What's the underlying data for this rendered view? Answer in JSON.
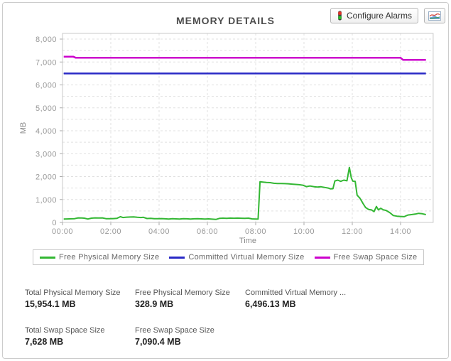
{
  "header": {
    "title": "MEMORY DETAILS",
    "configure_alarms_label": "Configure Alarms"
  },
  "icons": {
    "alarms_button": "traffic-light-icon",
    "chart_button": "line-chart-icon"
  },
  "chart_data": {
    "type": "line",
    "title": "MEMORY DETAILS",
    "xlabel": "Time",
    "ylabel": "MB",
    "ylim": [
      0,
      8000
    ],
    "grid": true,
    "legend_position": "bottom",
    "y_ticks": [
      0,
      1000,
      2000,
      3000,
      4000,
      5000,
      6000,
      7000,
      8000
    ],
    "y_tick_labels": [
      "0",
      "1,000",
      "2,000",
      "3,000",
      "4,000",
      "5,000",
      "6,000",
      "7,000",
      "8,000"
    ],
    "x_tick_hours": [
      0,
      2,
      4,
      6,
      8,
      10,
      12,
      14
    ],
    "x_tick_labels": [
      "00:00",
      "02:00",
      "04:00",
      "06:00",
      "08:00",
      "10:00",
      "12:00",
      "14:00"
    ],
    "x_hours_span": 15.35,
    "series": [
      {
        "name": "Free Physical Memory Size",
        "color": "#33b733",
        "width": 2,
        "points": [
          [
            0.05,
            150
          ],
          [
            0.2,
            152
          ],
          [
            0.35,
            158
          ],
          [
            0.5,
            165
          ],
          [
            0.65,
            200
          ],
          [
            0.8,
            195
          ],
          [
            0.9,
            185
          ],
          [
            1.05,
            150
          ],
          [
            1.2,
            185
          ],
          [
            1.35,
            200
          ],
          [
            1.5,
            195
          ],
          [
            1.65,
            200
          ],
          [
            1.8,
            165
          ],
          [
            1.95,
            162
          ],
          [
            2.1,
            168
          ],
          [
            2.25,
            178
          ],
          [
            2.4,
            250
          ],
          [
            2.5,
            215
          ],
          [
            2.65,
            228
          ],
          [
            2.8,
            235
          ],
          [
            2.95,
            238
          ],
          [
            3.1,
            222
          ],
          [
            3.25,
            214
          ],
          [
            3.35,
            224
          ],
          [
            3.5,
            170
          ],
          [
            3.65,
            180
          ],
          [
            3.8,
            165
          ],
          [
            3.95,
            162
          ],
          [
            4.1,
            166
          ],
          [
            4.25,
            158
          ],
          [
            4.4,
            150
          ],
          [
            4.55,
            160
          ],
          [
            4.7,
            154
          ],
          [
            4.85,
            150
          ],
          [
            5.0,
            164
          ],
          [
            5.15,
            158
          ],
          [
            5.3,
            150
          ],
          [
            5.45,
            158
          ],
          [
            5.6,
            164
          ],
          [
            5.75,
            154
          ],
          [
            5.9,
            150
          ],
          [
            6.05,
            156
          ],
          [
            6.2,
            144
          ],
          [
            6.35,
            130
          ],
          [
            6.5,
            178
          ],
          [
            6.65,
            186
          ],
          [
            6.8,
            180
          ],
          [
            6.95,
            190
          ],
          [
            7.1,
            184
          ],
          [
            7.25,
            190
          ],
          [
            7.4,
            184
          ],
          [
            7.55,
            180
          ],
          [
            7.7,
            186
          ],
          [
            7.85,
            155
          ],
          [
            8.0,
            150
          ],
          [
            8.1,
            148
          ],
          [
            8.18,
            1775
          ],
          [
            8.3,
            1760
          ],
          [
            8.45,
            1745
          ],
          [
            8.6,
            1735
          ],
          [
            8.75,
            1710
          ],
          [
            8.9,
            1700
          ],
          [
            9.05,
            1698
          ],
          [
            9.2,
            1692
          ],
          [
            9.35,
            1688
          ],
          [
            9.5,
            1672
          ],
          [
            9.65,
            1658
          ],
          [
            9.8,
            1648
          ],
          [
            9.95,
            1625
          ],
          [
            10.1,
            1562
          ],
          [
            10.25,
            1590
          ],
          [
            10.4,
            1562
          ],
          [
            10.55,
            1545
          ],
          [
            10.7,
            1556
          ],
          [
            10.85,
            1528
          ],
          [
            11.0,
            1500
          ],
          [
            11.1,
            1465
          ],
          [
            11.2,
            1472
          ],
          [
            11.28,
            1810
          ],
          [
            11.4,
            1845
          ],
          [
            11.52,
            1792
          ],
          [
            11.65,
            1845
          ],
          [
            11.78,
            1818
          ],
          [
            11.88,
            2400
          ],
          [
            11.96,
            1950
          ],
          [
            12.02,
            1800
          ],
          [
            12.12,
            1792
          ],
          [
            12.2,
            1190
          ],
          [
            12.32,
            1050
          ],
          [
            12.45,
            820
          ],
          [
            12.55,
            650
          ],
          [
            12.68,
            565
          ],
          [
            12.8,
            545
          ],
          [
            12.9,
            470
          ],
          [
            13.0,
            695
          ],
          [
            13.08,
            550
          ],
          [
            13.18,
            618
          ],
          [
            13.28,
            552
          ],
          [
            13.4,
            525
          ],
          [
            13.55,
            430
          ],
          [
            13.7,
            300
          ],
          [
            13.85,
            272
          ],
          [
            14.0,
            262
          ],
          [
            14.15,
            250
          ],
          [
            14.3,
            322
          ],
          [
            14.45,
            340
          ],
          [
            14.6,
            362
          ],
          [
            14.75,
            398
          ],
          [
            14.9,
            378
          ],
          [
            15.05,
            340
          ]
        ]
      },
      {
        "name": "Committed Virtual Memory Size",
        "color": "#2929c6",
        "width": 2.5,
        "points": [
          [
            0.05,
            6500
          ],
          [
            15.05,
            6500
          ]
        ]
      },
      {
        "name": "Free Swap Space Size",
        "color": "#cc00cc",
        "width": 2.5,
        "points": [
          [
            0.05,
            7230
          ],
          [
            0.45,
            7230
          ],
          [
            0.55,
            7185
          ],
          [
            14.0,
            7185
          ],
          [
            14.1,
            7095
          ],
          [
            15.05,
            7095
          ]
        ]
      }
    ]
  },
  "stats": {
    "rows": [
      [
        {
          "label": "Total Physical Memory Size",
          "value": "15,954.1 MB"
        },
        {
          "label": "Free Physical Memory Size",
          "value": "328.9 MB"
        },
        {
          "label": "Committed Virtual Memory ...",
          "value": "6,496.13 MB"
        }
      ],
      [
        {
          "label": "Total Swap Space Size",
          "value": "7,628 MB"
        },
        {
          "label": "Free Swap Space Size",
          "value": "7,090.4 MB"
        }
      ]
    ]
  }
}
